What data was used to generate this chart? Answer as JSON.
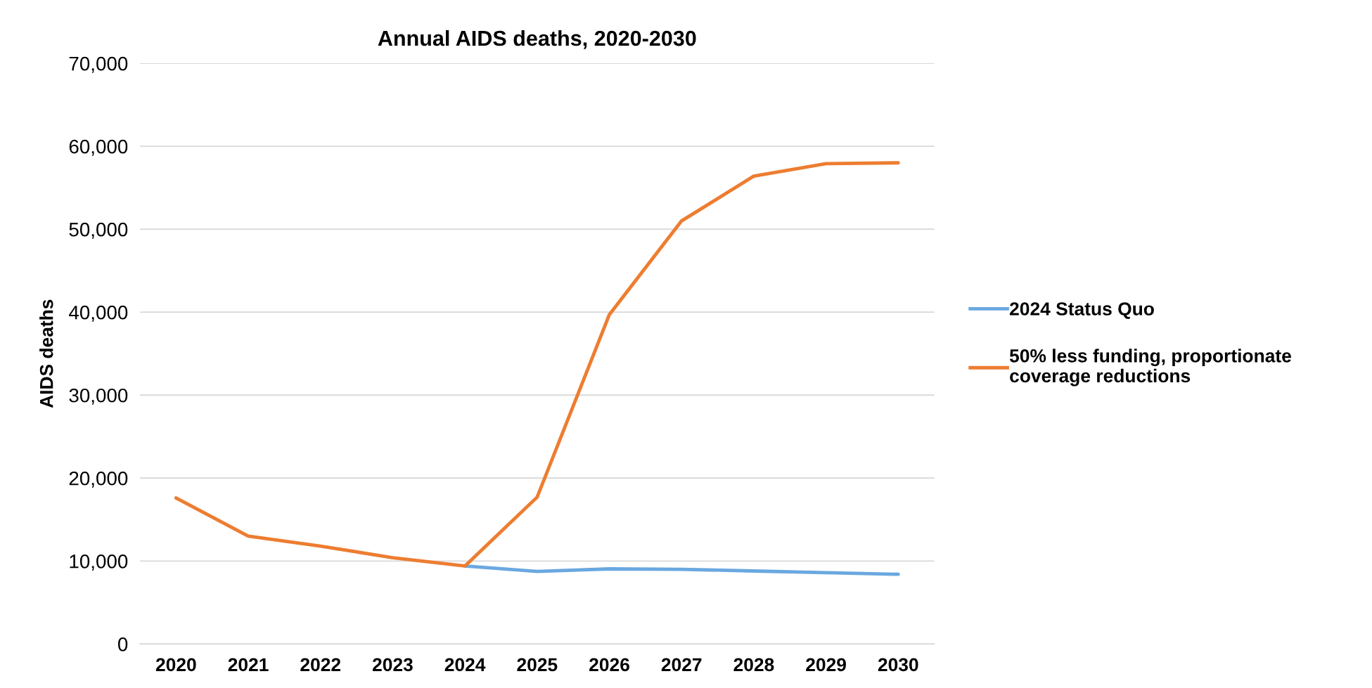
{
  "chart_data": {
    "type": "line",
    "title": "Annual AIDS deaths, 2020-2030",
    "ylabel": "AIDS deaths",
    "categories": [
      "2020",
      "2021",
      "2022",
      "2023",
      "2024",
      "2025",
      "2026",
      "2027",
      "2028",
      "2029",
      "2030"
    ],
    "series": [
      {
        "name": "2024 Status Quo",
        "color": "#6aa8e0",
        "values": [
          null,
          null,
          null,
          null,
          9400,
          8750,
          9050,
          9000,
          8800,
          8600,
          8400
        ]
      },
      {
        "name": "50% less funding, proportionate\ncoverage reductions",
        "color": "#ed7d31",
        "values": [
          17600,
          13000,
          11800,
          10400,
          9400,
          17700,
          39700,
          51000,
          56400,
          57900,
          58000
        ]
      }
    ],
    "ylim": [
      0,
      70000
    ],
    "yticks": [
      {
        "value": 0,
        "label": "0"
      },
      {
        "value": 10000,
        "label": "10,000"
      },
      {
        "value": 20000,
        "label": "20,000"
      },
      {
        "value": 30000,
        "label": "30,000"
      },
      {
        "value": 40000,
        "label": "40,000"
      },
      {
        "value": 50000,
        "label": "50,000"
      },
      {
        "value": 60000,
        "label": "60,000"
      },
      {
        "value": 70000,
        "label": "70,000"
      }
    ],
    "grid": "y",
    "legend": "right",
    "marker": "none",
    "line_style": "solid"
  }
}
